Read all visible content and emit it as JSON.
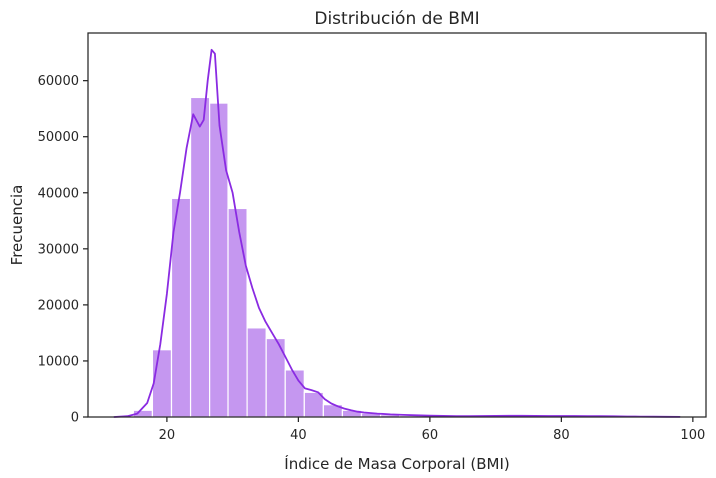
{
  "chart_data": {
    "type": "histogram",
    "title": "Distribución de BMI",
    "xlabel": "Índice de Masa Corporal (BMI)",
    "ylabel": "Frecuencia",
    "xlim": [
      8,
      102
    ],
    "ylim": [
      0,
      68500
    ],
    "xticks": [
      20,
      40,
      60,
      80,
      100
    ],
    "yticks": [
      0,
      10000,
      20000,
      30000,
      40000,
      50000,
      60000
    ],
    "grid": false,
    "legend": "none",
    "colors": {
      "bar_fill": "#c597f0",
      "bar_edge": "#ffffff",
      "kde_line": "#8a2be2",
      "axes": "#262626"
    },
    "bins": [
      {
        "x0": 12.0,
        "x1": 14.9,
        "count": 30
      },
      {
        "x0": 14.9,
        "x1": 17.8,
        "count": 1200
      },
      {
        "x0": 17.8,
        "x1": 20.7,
        "count": 12000
      },
      {
        "x0": 20.7,
        "x1": 23.6,
        "count": 39000
      },
      {
        "x0": 23.6,
        "x1": 26.5,
        "count": 57000
      },
      {
        "x0": 26.5,
        "x1": 29.3,
        "count": 56000
      },
      {
        "x0": 29.3,
        "x1": 32.2,
        "count": 37200
      },
      {
        "x0": 32.2,
        "x1": 35.1,
        "count": 15900
      },
      {
        "x0": 35.1,
        "x1": 38.0,
        "count": 14000
      },
      {
        "x0": 38.0,
        "x1": 40.9,
        "count": 8400
      },
      {
        "x0": 40.9,
        "x1": 43.8,
        "count": 4400
      },
      {
        "x0": 43.8,
        "x1": 46.7,
        "count": 2200
      },
      {
        "x0": 46.7,
        "x1": 49.6,
        "count": 1200
      },
      {
        "x0": 49.6,
        "x1": 52.5,
        "count": 700
      },
      {
        "x0": 52.5,
        "x1": 55.4,
        "count": 400
      },
      {
        "x0": 55.4,
        "x1": 58.3,
        "count": 250
      },
      {
        "x0": 58.3,
        "x1": 61.2,
        "count": 150
      },
      {
        "x0": 61.2,
        "x1": 64.1,
        "count": 110
      },
      {
        "x0": 64.1,
        "x1": 67.0,
        "count": 90
      },
      {
        "x0": 67.0,
        "x1": 69.9,
        "count": 90
      },
      {
        "x0": 69.9,
        "x1": 72.8,
        "count": 120
      },
      {
        "x0": 72.8,
        "x1": 75.7,
        "count": 110
      },
      {
        "x0": 75.7,
        "x1": 78.6,
        "count": 90
      },
      {
        "x0": 78.6,
        "x1": 81.5,
        "count": 110
      },
      {
        "x0": 81.5,
        "x1": 84.4,
        "count": 80
      },
      {
        "x0": 84.4,
        "x1": 87.3,
        "count": 90
      },
      {
        "x0": 87.3,
        "x1": 90.2,
        "count": 60
      },
      {
        "x0": 90.2,
        "x1": 93.1,
        "count": 40
      },
      {
        "x0": 93.1,
        "x1": 96.0,
        "count": 30
      },
      {
        "x0": 96.0,
        "x1": 98.9,
        "count": 20
      }
    ],
    "kde": [
      [
        12,
        0
      ],
      [
        14,
        150
      ],
      [
        15.5,
        600
      ],
      [
        17,
        2500
      ],
      [
        18,
        6000
      ],
      [
        19,
        13000
      ],
      [
        20,
        22000
      ],
      [
        21,
        33000
      ],
      [
        22,
        40000
      ],
      [
        23,
        48000
      ],
      [
        24,
        54000
      ],
      [
        25,
        51800
      ],
      [
        25.6,
        53000
      ],
      [
        26.2,
        60000
      ],
      [
        26.8,
        65500
      ],
      [
        27.3,
        64800
      ],
      [
        28,
        52000
      ],
      [
        29,
        44000
      ],
      [
        30,
        40000
      ],
      [
        31,
        33000
      ],
      [
        32,
        27000
      ],
      [
        33,
        23000
      ],
      [
        34,
        19500
      ],
      [
        35,
        17000
      ],
      [
        36,
        15000
      ],
      [
        37,
        13000
      ],
      [
        38,
        10800
      ],
      [
        39,
        8500
      ],
      [
        40,
        6500
      ],
      [
        41,
        5100
      ],
      [
        42,
        4800
      ],
      [
        43,
        4400
      ],
      [
        44,
        3200
      ],
      [
        45,
        2400
      ],
      [
        46,
        1900
      ],
      [
        47,
        1500
      ],
      [
        48,
        1200
      ],
      [
        49,
        950
      ],
      [
        50,
        800
      ],
      [
        52,
        600
      ],
      [
        54,
        460
      ],
      [
        56,
        380
      ],
      [
        58,
        300
      ],
      [
        60,
        230
      ],
      [
        62,
        190
      ],
      [
        64,
        160
      ],
      [
        66,
        160
      ],
      [
        68,
        170
      ],
      [
        70,
        190
      ],
      [
        72,
        210
      ],
      [
        74,
        210
      ],
      [
        76,
        190
      ],
      [
        78,
        180
      ],
      [
        80,
        180
      ],
      [
        82,
        170
      ],
      [
        84,
        160
      ],
      [
        86,
        150
      ],
      [
        88,
        120
      ],
      [
        90,
        90
      ],
      [
        92,
        70
      ],
      [
        94,
        50
      ],
      [
        96,
        30
      ],
      [
        98,
        15
      ]
    ]
  }
}
